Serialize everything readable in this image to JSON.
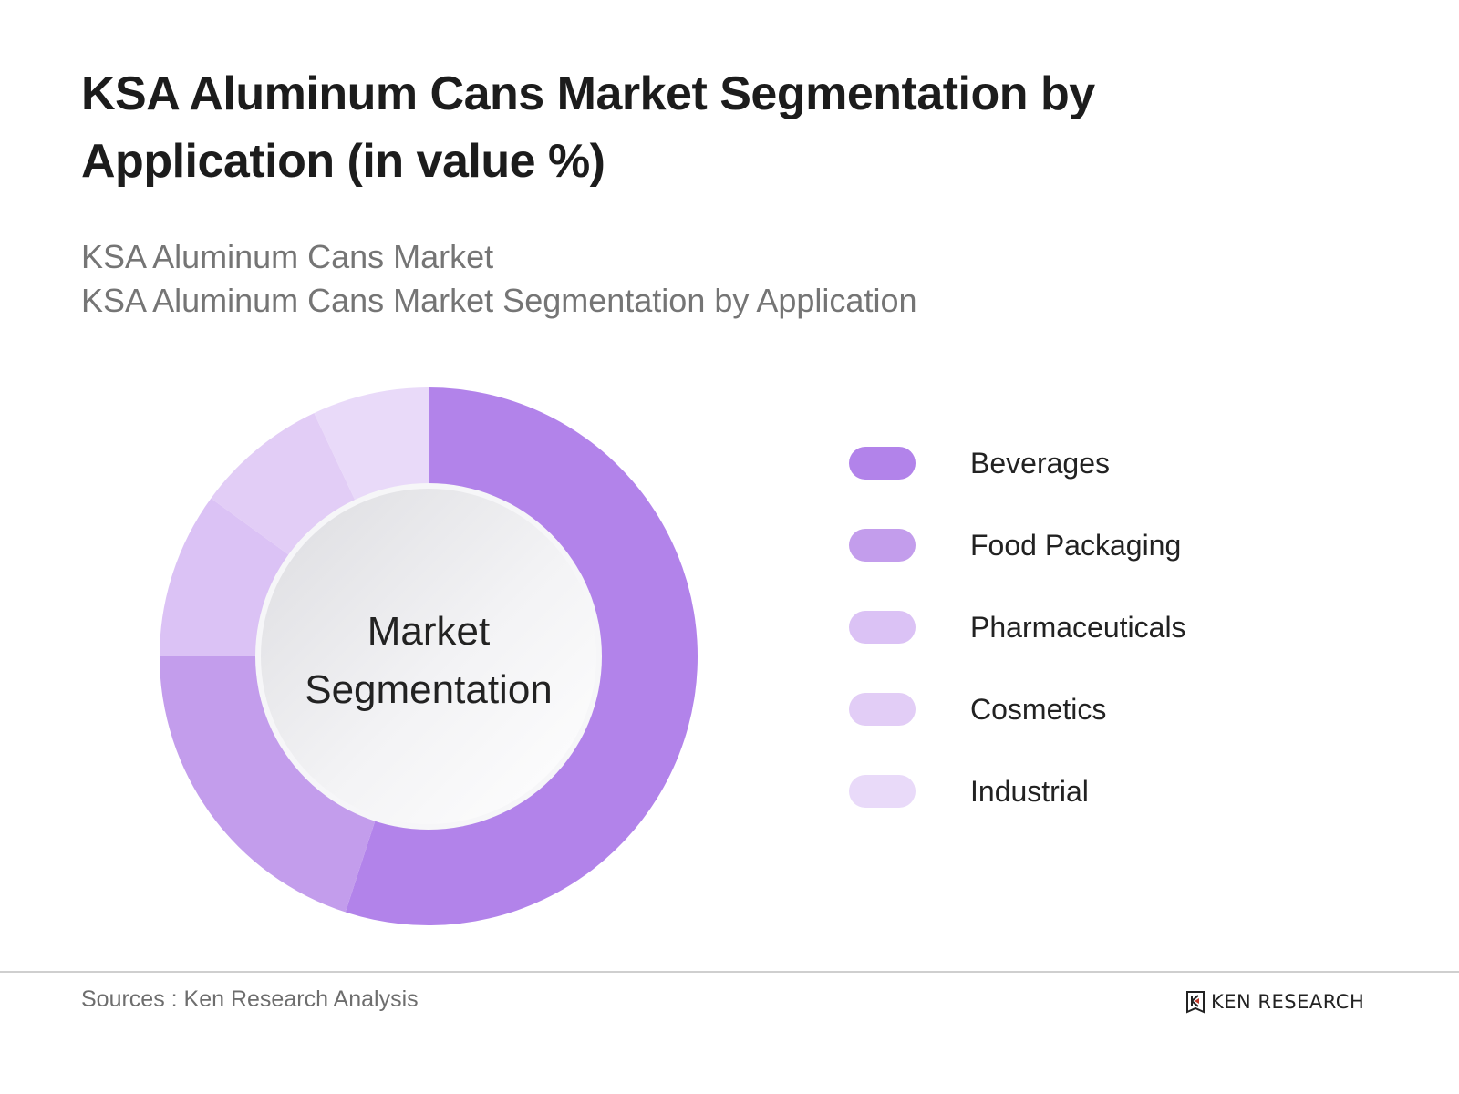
{
  "header": {
    "title": "KSA Aluminum Cans Market Segmentation by Application (in value %)",
    "subtitle_line1": "KSA Aluminum Cans Market",
    "subtitle_line2": "KSA Aluminum Cans Market Segmentation by Application"
  },
  "center_label": {
    "line1": "Market",
    "line2": "Segmentation"
  },
  "legend": {
    "items": [
      {
        "label": "Beverages",
        "color": "#b283ea"
      },
      {
        "label": "Food Packaging",
        "color": "#c39dec"
      },
      {
        "label": "Pharmaceuticals",
        "color": "#dbc2f5"
      },
      {
        "label": "Cosmetics",
        "color": "#e2cdf6"
      },
      {
        "label": "Industrial",
        "color": "#e9daf9"
      }
    ]
  },
  "footer": {
    "source": "Sources : Ken Research Analysis",
    "brand": "KEN RESEARCH"
  },
  "chart_data": {
    "type": "pie",
    "variant": "donut",
    "title": "KSA Aluminum Cans Market Segmentation by Application (in value %)",
    "subtitle": "KSA Aluminum Cans Market Segmentation by Application",
    "center_text": "Market Segmentation",
    "categories": [
      "Beverages",
      "Food Packaging",
      "Pharmaceuticals",
      "Cosmetics",
      "Industrial"
    ],
    "values": [
      55,
      20,
      10,
      8,
      7
    ],
    "colors": [
      "#b283ea",
      "#c39dec",
      "#dbc2f5",
      "#e2cdf6",
      "#e9daf9"
    ],
    "start_angle": "12 o'clock, clockwise",
    "legend_position": "right",
    "unit": "%"
  }
}
